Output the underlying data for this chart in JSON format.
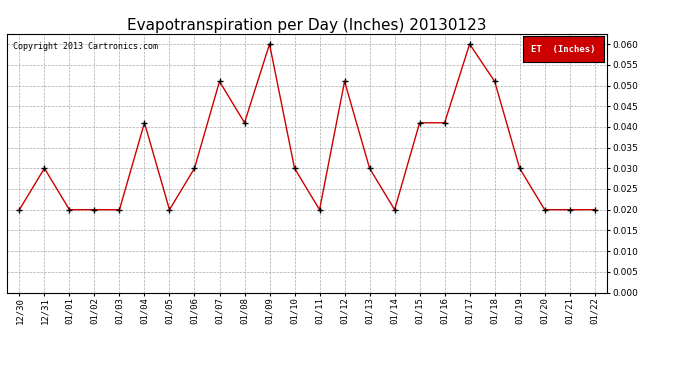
{
  "title": "Evapotranspiration per Day (Inches) 20130123",
  "copyright_text": "Copyright 2013 Cartronics.com",
  "legend_label": "ET  (Inches)",
  "legend_bg": "#cc0000",
  "legend_fg": "#ffffff",
  "x_labels": [
    "12/30",
    "12/31",
    "01/01",
    "01/02",
    "01/03",
    "01/04",
    "01/05",
    "01/06",
    "01/07",
    "01/08",
    "01/09",
    "01/10",
    "01/11",
    "01/12",
    "01/13",
    "01/14",
    "01/15",
    "01/16",
    "01/17",
    "01/18",
    "01/19",
    "01/20",
    "01/21",
    "01/22"
  ],
  "y_values": [
    0.02,
    0.03,
    0.02,
    0.02,
    0.02,
    0.041,
    0.02,
    0.03,
    0.051,
    0.041,
    0.06,
    0.03,
    0.02,
    0.051,
    0.03,
    0.02,
    0.041,
    0.041,
    0.06,
    0.051,
    0.03,
    0.02,
    0.02,
    0.02
  ],
  "line_color": "#cc0000",
  "marker_color": "#000000",
  "ylim": [
    0.0,
    0.0625
  ],
  "yticks": [
    0.0,
    0.005,
    0.01,
    0.015,
    0.02,
    0.025,
    0.03,
    0.035,
    0.04,
    0.045,
    0.05,
    0.055,
    0.06
  ],
  "bg_color": "#ffffff",
  "grid_color": "#aaaaaa",
  "title_fontsize": 11,
  "tick_fontsize": 6.5,
  "copyright_fontsize": 6,
  "legend_fontsize": 6.5,
  "figwidth": 6.9,
  "figheight": 3.75,
  "dpi": 100
}
